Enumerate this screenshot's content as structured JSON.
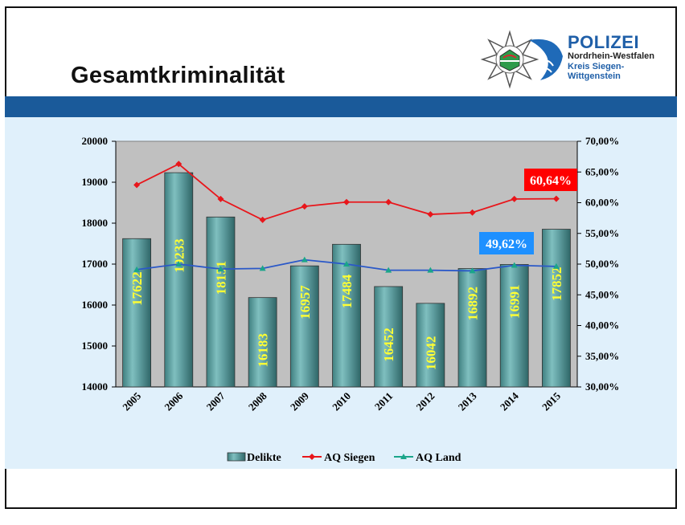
{
  "page_title": "Gesamtkriminalität",
  "logo": {
    "name": "POLIZEI",
    "line1": "Nordrhein-Westfalen",
    "line2": "Kreis Siegen-",
    "line3": "Wittgenstein"
  },
  "colors": {
    "band": "#1a5a9a",
    "panel": "#e0f0fb",
    "plot_bg": "#c0c0c0",
    "bar": "#5f9ea0",
    "siegen": "#e8161b",
    "land_line": "#2a58c8",
    "land_marker": "#1aa58a",
    "callout_red": "#ff0000",
    "callout_blue": "#1e90ff",
    "bar_label": "#ffff33"
  },
  "chart_data": {
    "type": "bar",
    "categories": [
      "2005",
      "2006",
      "2007",
      "2008",
      "2009",
      "2010",
      "2011",
      "2012",
      "2013",
      "2014",
      "2015"
    ],
    "series": [
      {
        "name": "Delikte",
        "type": "bar",
        "axis": "left",
        "values": [
          17622,
          19233,
          18151,
          16183,
          16957,
          17484,
          16452,
          16042,
          16892,
          16991,
          17852
        ]
      },
      {
        "name": "AQ Siegen",
        "type": "line",
        "axis": "right",
        "values": [
          62.9,
          66.3,
          60.6,
          57.2,
          59.4,
          60.1,
          60.1,
          58.1,
          58.4,
          60.6,
          60.64
        ]
      },
      {
        "name": "AQ Land",
        "type": "line",
        "axis": "right",
        "values": [
          49.1,
          50.0,
          49.2,
          49.3,
          50.7,
          50.0,
          49.0,
          49.0,
          48.9,
          49.8,
          49.62
        ]
      }
    ],
    "left_axis": {
      "min": 14000,
      "max": 20000,
      "step": 1000,
      "ticks": [
        "14000",
        "15000",
        "16000",
        "17000",
        "18000",
        "19000",
        "20000"
      ]
    },
    "right_axis": {
      "min": 30,
      "max": 70,
      "step": 5,
      "ticks": [
        "30,00%",
        "35,00%",
        "40,00%",
        "45,00%",
        "50,00%",
        "55,00%",
        "60,00%",
        "65,00%",
        "70,00%"
      ]
    },
    "bar_labels": [
      "17622",
      "19233",
      "18151",
      "16183",
      "16957",
      "17484",
      "16452",
      "16042",
      "16892",
      "16991",
      "17852"
    ],
    "callouts": [
      {
        "text": "60,64%",
        "series": "AQ Siegen",
        "category": "2015",
        "color": "red"
      },
      {
        "text": "49,62%",
        "series": "AQ Land",
        "category": "2014",
        "color": "blue"
      }
    ],
    "legend": [
      "Delikte",
      "AQ Siegen",
      "AQ Land"
    ],
    "legend_position": "bottom",
    "grid": false
  }
}
